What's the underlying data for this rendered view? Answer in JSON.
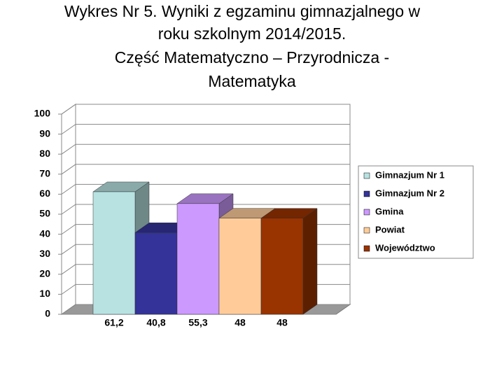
{
  "chart_data": {
    "type": "bar",
    "title": [
      "Wykres Nr 5. Wyniki z egzaminu gimnazjalnego   w",
      "roku szkolnym 2014/2015.",
      "Część Matematyczno – Przyrodnicza -",
      "Matematyka"
    ],
    "series": [
      {
        "name": "Gimnazjum Nr 1",
        "color": "#b8e2e2",
        "values": [
          61.2
        ],
        "value_labels": [
          "61,2"
        ]
      },
      {
        "name": "Gimnazjum Nr 2",
        "color": "#333399",
        "values": [
          40.8
        ],
        "value_labels": [
          "40,8"
        ]
      },
      {
        "name": "Gmina",
        "color": "#cc99ff",
        "values": [
          55.3
        ],
        "value_labels": [
          "55,3"
        ]
      },
      {
        "name": "Powiat",
        "color": "#ffcc99",
        "values": [
          48
        ],
        "value_labels": [
          "48"
        ]
      },
      {
        "name": "Województwo",
        "color": "#993300",
        "values": [
          48
        ],
        "value_labels": [
          "48"
        ]
      }
    ],
    "ylim": [
      0,
      100
    ],
    "yticks": [
      0,
      10,
      20,
      30,
      40,
      50,
      60,
      70,
      80,
      90,
      100
    ],
    "grid": true,
    "legend": "right"
  }
}
